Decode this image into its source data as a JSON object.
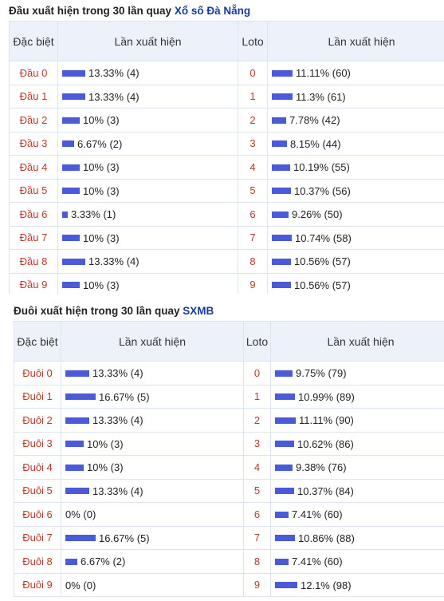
{
  "table1": {
    "title": "Đầu xuất hiện trong 30 lần quay",
    "title_link": "Xổ số Đà Nẵng",
    "headers": {
      "special": "Đặc biệt",
      "freq": "Lần xuất hiện",
      "loto": "Loto",
      "freq2": "Lần xuất hiện"
    },
    "rows": [
      {
        "label": "Đầu 0",
        "pct": 13.33,
        "text": "13.33% (4)",
        "loto": "0",
        "lpct": 11.11,
        "ltext": "11.11% (60)"
      },
      {
        "label": "Đầu 1",
        "pct": 13.33,
        "text": "13.33% (4)",
        "loto": "1",
        "lpct": 11.3,
        "ltext": "11.3% (61)"
      },
      {
        "label": "Đầu 2",
        "pct": 10,
        "text": "10% (3)",
        "loto": "2",
        "lpct": 7.78,
        "ltext": "7.78% (42)"
      },
      {
        "label": "Đầu 3",
        "pct": 6.67,
        "text": "6.67% (2)",
        "loto": "3",
        "lpct": 8.15,
        "ltext": "8.15% (44)"
      },
      {
        "label": "Đầu 4",
        "pct": 10,
        "text": "10% (3)",
        "loto": "4",
        "lpct": 10.19,
        "ltext": "10.19% (55)"
      },
      {
        "label": "Đầu 5",
        "pct": 10,
        "text": "10% (3)",
        "loto": "5",
        "lpct": 10.37,
        "ltext": "10.37% (56)"
      },
      {
        "label": "Đầu 6",
        "pct": 3.33,
        "text": "3.33% (1)",
        "loto": "6",
        "lpct": 9.26,
        "ltext": "9.26% (50)"
      },
      {
        "label": "Đầu 7",
        "pct": 10,
        "text": "10% (3)",
        "loto": "7",
        "lpct": 10.74,
        "ltext": "10.74% (58)"
      },
      {
        "label": "Đầu 8",
        "pct": 13.33,
        "text": "13.33% (4)",
        "loto": "8",
        "lpct": 10.56,
        "ltext": "10.56% (57)"
      },
      {
        "label": "Đầu 9",
        "pct": 10,
        "text": "10% (3)",
        "loto": "9",
        "lpct": 10.56,
        "ltext": "10.56% (57)"
      }
    ]
  },
  "table2": {
    "title": "Đuôi xuất hiện trong 30 lần quay",
    "title_link": "SXMB",
    "headers": {
      "special": "Đặc biệt",
      "freq": "Lần xuất hiện",
      "loto": "Loto",
      "freq2": "Lần xuất hiện"
    },
    "rows": [
      {
        "label": "Đuôi 0",
        "pct": 13.33,
        "text": "13.33% (4)",
        "loto": "0",
        "lpct": 9.75,
        "ltext": "9.75% (79)"
      },
      {
        "label": "Đuôi 1",
        "pct": 16.67,
        "text": "16.67% (5)",
        "loto": "1",
        "lpct": 10.99,
        "ltext": "10.99% (89)"
      },
      {
        "label": "Đuôi 2",
        "pct": 13.33,
        "text": "13.33% (4)",
        "loto": "2",
        "lpct": 11.11,
        "ltext": "11.11% (90)"
      },
      {
        "label": "Đuôi 3",
        "pct": 10,
        "text": "10% (3)",
        "loto": "3",
        "lpct": 10.62,
        "ltext": "10.62% (86)"
      },
      {
        "label": "Đuôi 4",
        "pct": 10,
        "text": "10% (3)",
        "loto": "4",
        "lpct": 9.38,
        "ltext": "9.38% (76)"
      },
      {
        "label": "Đuôi 5",
        "pct": 13.33,
        "text": "13.33% (4)",
        "loto": "5",
        "lpct": 10.37,
        "ltext": "10.37% (84)"
      },
      {
        "label": "Đuôi 6",
        "pct": 0,
        "text": "0% (0)",
        "loto": "6",
        "lpct": 7.41,
        "ltext": "7.41% (60)"
      },
      {
        "label": "Đuôi 7",
        "pct": 16.67,
        "text": "16.67% (5)",
        "loto": "7",
        "lpct": 10.86,
        "ltext": "10.86% (88)"
      },
      {
        "label": "Đuôi 8",
        "pct": 6.67,
        "text": "6.67% (2)",
        "loto": "8",
        "lpct": 7.41,
        "ltext": "7.41% (60)"
      },
      {
        "label": "Đuôi 9",
        "pct": 0,
        "text": "0% (0)",
        "loto": "9",
        "lpct": 12.1,
        "ltext": "12.1% (98)"
      }
    ]
  }
}
